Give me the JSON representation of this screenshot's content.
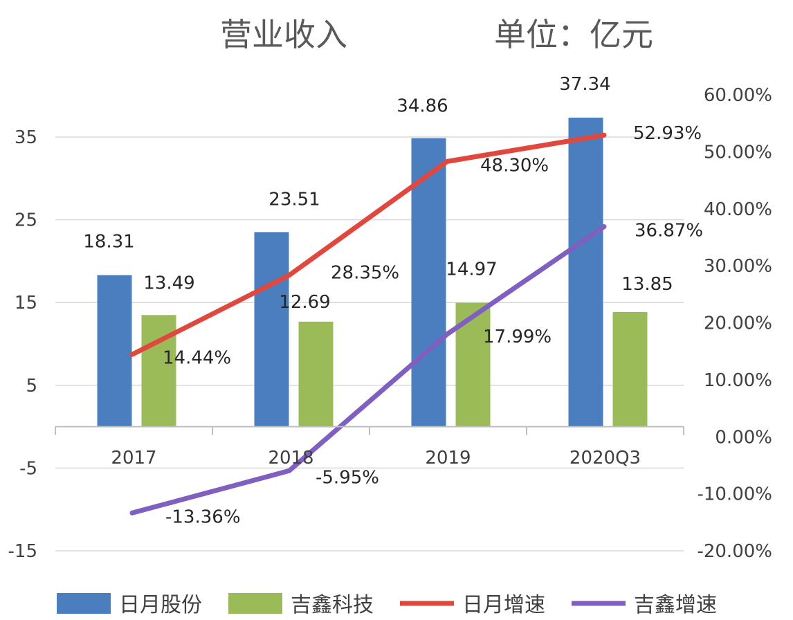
{
  "title": "营业收入",
  "unit": "单位：亿元",
  "chart_data": {
    "type": "bar",
    "categories": [
      "2017",
      "2018",
      "2019",
      "2020Q3"
    ],
    "left_axis": {
      "ticks": [
        "35",
        "25",
        "15",
        "5",
        "-5",
        "-15"
      ],
      "ylim": [
        -15,
        35
      ]
    },
    "right_axis": {
      "ticks": [
        "60.00%",
        "50.00%",
        "40.00%",
        "30.00%",
        "20.00%",
        "10.00%",
        "0.00%",
        "-10.00%",
        "-20.00%"
      ],
      "ylim": [
        -20,
        60
      ]
    },
    "series": [
      {
        "name": "日月股份",
        "kind": "bar",
        "axis": "left",
        "color": "#4a7ebf",
        "values": [
          18.31,
          23.51,
          34.86,
          37.34
        ],
        "labels": [
          "18.31",
          "23.51",
          "34.86",
          "37.34"
        ]
      },
      {
        "name": "吉鑫科技",
        "kind": "bar",
        "axis": "left",
        "color": "#9bbb59",
        "values": [
          13.49,
          12.69,
          14.97,
          13.85
        ],
        "labels": [
          "13.49",
          "12.69",
          "14.97",
          "13.85"
        ]
      },
      {
        "name": "日月增速",
        "kind": "line",
        "axis": "right",
        "color": "#e0483e",
        "values": [
          14.44,
          28.35,
          48.3,
          52.93
        ],
        "labels": [
          "14.44%",
          "28.35%",
          "48.30%",
          "52.93%"
        ]
      },
      {
        "name": "吉鑫增速",
        "kind": "line",
        "axis": "right",
        "color": "#7f5fbf",
        "values": [
          -13.36,
          -5.95,
          17.99,
          36.87
        ],
        "labels": [
          "-13.36%",
          "-5.95%",
          "17.99%",
          "36.87%"
        ]
      }
    ],
    "grid": true,
    "legend_position": "bottom"
  }
}
